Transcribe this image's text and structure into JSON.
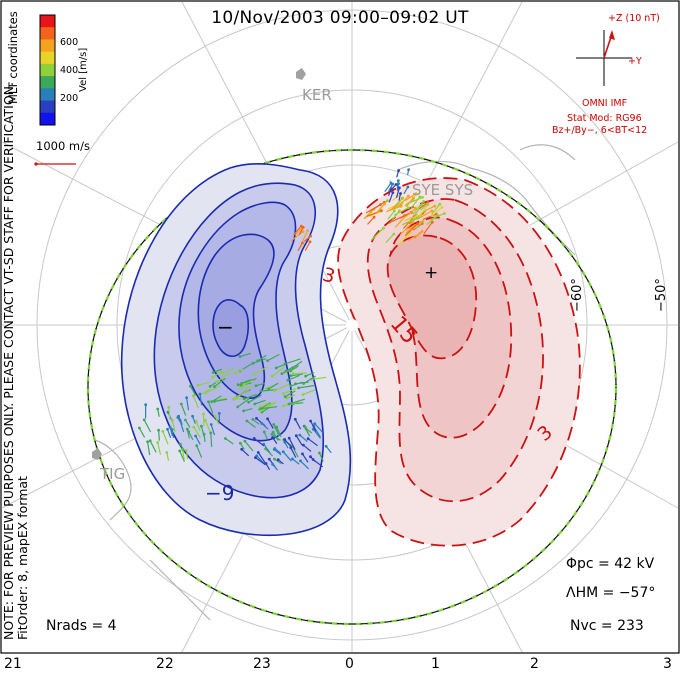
{
  "title": "10/Nov/2003 09:00–09:02 UT",
  "preview_note": "NOTE: FOR PREVIEW PURPOSES ONLY. PLEASE CONTACT VT-SD STAFF FOR VERIFICATION.",
  "fit_note": "FitOrder: 8, mapEX format",
  "coordinates_label": "MLT coordinates",
  "colorbar": {
    "label": "Vel [m/s]",
    "ticks": [
      "600",
      "400",
      "200"
    ],
    "colors": [
      "#e8141a",
      "#f2641c",
      "#f7a21e",
      "#e6d426",
      "#8fd13a",
      "#3ca85a",
      "#2b7fb8",
      "#2a3fc0",
      "#1212ee"
    ]
  },
  "vector_scale": "1000 m/s",
  "imf": {
    "z_label": "+Z (10 nT)",
    "y_label": "+Y",
    "source": "OMNI IMF",
    "model": "Stat Mod: RG96",
    "condition": "Bz+/By−, 6<BT<12"
  },
  "stations": [
    "KER",
    "SYE SYS",
    "TIG"
  ],
  "latitude_labels": [
    "−60°",
    "−50°"
  ],
  "contour_labels": {
    "negative": [
      "−9"
    ],
    "positive": [
      "3",
      "15",
      "3"
    ],
    "min_marker": "−",
    "max_marker": "+"
  },
  "stats": {
    "phi_pc": "Φpc = 42 kV",
    "lambda_hm": "ΛHM = −57°",
    "n_vc": "Nvc = 233",
    "n_rads": "Nrads = 4"
  },
  "x_axis_labels": [
    "21",
    "22",
    "23",
    "0",
    "1",
    "2",
    "3"
  ],
  "colors": {
    "negative_contour": "#1a2bb0",
    "positive_contour": "#cc1111",
    "hm_boundary": "#7fd13b",
    "grid": "#c8c8c8",
    "coast": "#b4b4b4"
  }
}
